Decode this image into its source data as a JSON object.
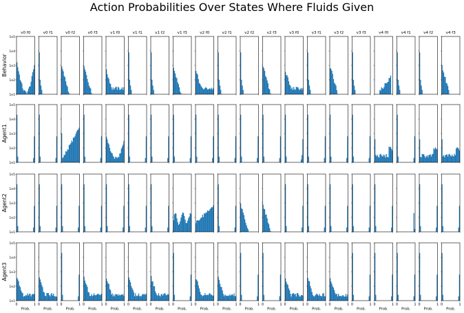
{
  "title": "Action Probabilities Over States Where Fluids Given",
  "chart_data": {
    "type": "histogram-grid",
    "title": "Action Probabilities Over States Where Fluids Given",
    "row_labels": [
      "Behavior",
      "Agent1",
      "Agent2",
      "Agent3"
    ],
    "col_labels": [
      "v0 f0",
      "v0 f1",
      "v0 f2",
      "v0 f3",
      "v1 f0",
      "v1 f1",
      "v1 f2",
      "v1 f3",
      "v2 f0",
      "v2 f1",
      "v2 f2",
      "v2 f3",
      "v3 f0",
      "v3 f1",
      "v3 f2",
      "v3 f3",
      "v4 f0",
      "v4 f1",
      "v4 f2",
      "v4 f3"
    ],
    "xlabel": "Prob.",
    "x_ticks": [
      "0",
      "1"
    ],
    "y_ticks": [
      "1e1",
      "1e2",
      "1e3",
      "1e4",
      "1e5"
    ],
    "ylim": [
      10,
      100000
    ],
    "yscale": "log",
    "bar_color": "#1f77b4",
    "profiles": {
      "Behavior": [
        "decay_u",
        "single_low",
        "decay_fast",
        "decay_fast",
        "decay_flat",
        "single_low",
        "single_low",
        "decay_fast",
        "decay_flat",
        "single_low",
        "single_low",
        "decay_fast",
        "decay_flat",
        "single_low",
        "decay_fast",
        "single_low",
        "mid_hump",
        "single_low",
        "single_low",
        "decay_fast"
      ],
      "Agent1": [
        "edges",
        "edges",
        "rising",
        "edges",
        "u_rise",
        "edges",
        "edges",
        "edges",
        "edges",
        "edges",
        "edges",
        "edges",
        "edges_tail",
        "edges",
        "edges",
        "edges",
        "spread",
        "edges",
        "spread",
        "spread"
      ],
      "Agent2": [
        "edges",
        "edges",
        "edges",
        "edges",
        "edges",
        "edges",
        "edges",
        "flat_high",
        "flat_rise",
        "edges",
        "decay_fast",
        "decay_fast",
        "edges",
        "edges",
        "edges",
        "edges",
        "edges",
        "right_spike",
        "edges",
        "edges"
      ],
      "Agent3": [
        "decay_flat",
        "decay_flat",
        "edges",
        "decay_flat",
        "decay_flat",
        "decay_flat",
        "decay_flat",
        "edges",
        "decay_flat",
        "decay_flat",
        "edges",
        "edges",
        "decay_flat",
        "decay_flat",
        "decay_flat",
        "edges",
        "edges",
        "edges",
        "edges",
        "edges"
      ]
    }
  }
}
